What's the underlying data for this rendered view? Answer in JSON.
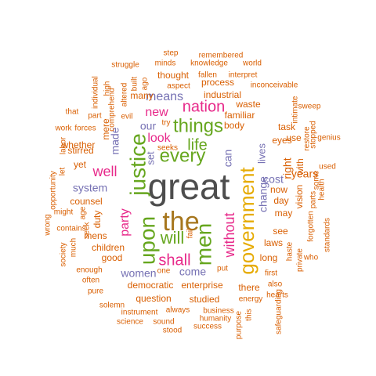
{
  "colors": {
    "dark": "#4D4D4D",
    "green": "#66A61E",
    "brown": "#A6761D",
    "orange": "#E6AB02",
    "magenta": "#E7298A",
    "purple": "#7570B3",
    "rust": "#D95F02"
  },
  "words": [
    {
      "id": "great",
      "text": "great",
      "color": "dark"
    },
    {
      "id": "the",
      "text": "the",
      "color": "brown"
    },
    {
      "id": "government",
      "text": "government",
      "color": "orange"
    },
    {
      "id": "upon",
      "text": "upon",
      "color": "green"
    },
    {
      "id": "justice",
      "text": "justice",
      "color": "green"
    },
    {
      "id": "men",
      "text": "men",
      "color": "green"
    },
    {
      "id": "every",
      "text": "every",
      "color": "green"
    },
    {
      "id": "things",
      "text": "things",
      "color": "green"
    },
    {
      "id": "life",
      "text": "life",
      "color": "green"
    },
    {
      "id": "will",
      "text": "will",
      "color": "green"
    },
    {
      "id": "nation",
      "text": "nation",
      "color": "magenta"
    },
    {
      "id": "shall",
      "text": "shall",
      "color": "magenta"
    },
    {
      "id": "without",
      "text": "without",
      "color": "magenta"
    },
    {
      "id": "party",
      "text": "party",
      "color": "magenta"
    },
    {
      "id": "well",
      "text": "well",
      "color": "magenta"
    },
    {
      "id": "look",
      "text": "look",
      "color": "magenta"
    },
    {
      "id": "new",
      "text": "new",
      "color": "magenta"
    },
    {
      "id": "means",
      "text": "means",
      "color": "purple"
    },
    {
      "id": "our",
      "text": "our",
      "color": "purple"
    },
    {
      "id": "made",
      "text": "made",
      "color": "purple"
    },
    {
      "id": "system",
      "text": "system",
      "color": "purple"
    },
    {
      "id": "set",
      "text": "set",
      "color": "purple"
    },
    {
      "id": "can",
      "text": "can",
      "color": "purple"
    },
    {
      "id": "change",
      "text": "change",
      "color": "purple"
    },
    {
      "id": "lives",
      "text": "lives",
      "color": "purple"
    },
    {
      "id": "cost",
      "text": "cost",
      "color": "purple"
    },
    {
      "id": "come",
      "text": "come",
      "color": "purple"
    },
    {
      "id": "women",
      "text": "women",
      "color": "purple"
    },
    {
      "id": "step",
      "text": "step",
      "color": "rust"
    },
    {
      "id": "remembered",
      "text": "remembered",
      "color": "rust"
    },
    {
      "id": "minds",
      "text": "minds",
      "color": "rust"
    },
    {
      "id": "knowledge",
      "text": "knowledge",
      "color": "rust"
    },
    {
      "id": "world",
      "text": "world",
      "color": "rust"
    },
    {
      "id": "struggle",
      "text": "struggle",
      "color": "rust"
    },
    {
      "id": "built",
      "text": "built",
      "color": "rust"
    },
    {
      "id": "ago",
      "text": "ago",
      "color": "rust"
    },
    {
      "id": "fallen",
      "text": "fallen",
      "color": "rust"
    },
    {
      "id": "interpret",
      "text": "interpret",
      "color": "rust"
    },
    {
      "id": "thought",
      "text": "thought",
      "color": "rust"
    },
    {
      "id": "aspect",
      "text": "aspect",
      "color": "rust"
    },
    {
      "id": "process",
      "text": "process",
      "color": "rust"
    },
    {
      "id": "inconceivable",
      "text": "inconceivable",
      "color": "rust"
    },
    {
      "id": "individual",
      "text": "individual",
      "color": "rust"
    },
    {
      "id": "high",
      "text": "high",
      "color": "rust"
    },
    {
      "id": "altered",
      "text": "altered",
      "color": "rust"
    },
    {
      "id": "many",
      "text": "many",
      "color": "rust"
    },
    {
      "id": "industrial",
      "text": "industrial",
      "color": "rust"
    },
    {
      "id": "part",
      "text": "part",
      "color": "rust"
    },
    {
      "id": "comprehend",
      "text": "comprehend",
      "color": "rust"
    },
    {
      "id": "that",
      "text": "that",
      "color": "rust"
    },
    {
      "id": "waste",
      "text": "waste",
      "color": "rust"
    },
    {
      "id": "intimate",
      "text": "intimate",
      "color": "rust"
    },
    {
      "id": "sweep",
      "text": "sweep",
      "color": "rust"
    },
    {
      "id": "evil",
      "text": "evil",
      "color": "rust"
    },
    {
      "id": "try",
      "text": "try",
      "color": "rust"
    },
    {
      "id": "familiar",
      "text": "familiar",
      "color": "rust"
    },
    {
      "id": "body",
      "text": "body",
      "color": "rust"
    },
    {
      "id": "work",
      "text": "work",
      "color": "rust"
    },
    {
      "id": "forces",
      "text": "forces",
      "color": "rust"
    },
    {
      "id": "mere",
      "text": "mere",
      "color": "rust"
    },
    {
      "id": "task",
      "text": "task",
      "color": "rust"
    },
    {
      "id": "restore",
      "text": "restore",
      "color": "rust"
    },
    {
      "id": "stopped",
      "text": "stopped",
      "color": "rust"
    },
    {
      "id": "genius",
      "text": "genius",
      "color": "rust"
    },
    {
      "id": "labor",
      "text": "labor",
      "color": "rust"
    },
    {
      "id": "stirred",
      "text": "stirred",
      "color": "rust"
    },
    {
      "id": "seeks",
      "text": "seeks",
      "color": "rust"
    },
    {
      "id": "eyes",
      "text": "eyes",
      "color": "rust"
    },
    {
      "id": "use",
      "text": "use",
      "color": "rust"
    },
    {
      "id": "whether",
      "text": "whether",
      "color": "rust"
    },
    {
      "id": "used",
      "text": "used",
      "color": "rust"
    },
    {
      "id": "yet",
      "text": "yet",
      "color": "rust"
    },
    {
      "id": "right",
      "text": "right",
      "color": "rust"
    },
    {
      "id": "years",
      "text": "years",
      "color": "rust"
    },
    {
      "id": "opportunity",
      "text": "opportunity",
      "color": "rust"
    },
    {
      "id": "let",
      "text": "let",
      "color": "rust"
    },
    {
      "id": "now",
      "text": "now",
      "color": "rust"
    },
    {
      "id": "vision",
      "text": "vision",
      "color": "rust"
    },
    {
      "id": "health",
      "text": "health",
      "color": "rust"
    },
    {
      "id": "with",
      "text": "with",
      "color": "rust"
    },
    {
      "id": "day",
      "text": "day",
      "color": "rust"
    },
    {
      "id": "parts",
      "text": "parts",
      "color": "rust"
    },
    {
      "id": "counsel",
      "text": "counsel",
      "color": "rust"
    },
    {
      "id": "might",
      "text": "might",
      "color": "rust"
    },
    {
      "id": "may",
      "text": "may",
      "color": "rust"
    },
    {
      "id": "some",
      "text": "some",
      "color": "rust"
    },
    {
      "id": "duty",
      "text": "duty",
      "color": "rust"
    },
    {
      "id": "forgotten",
      "text": "forgotten",
      "color": "rust"
    },
    {
      "id": "wrong",
      "text": "wrong",
      "color": "rust"
    },
    {
      "id": "age",
      "text": "age",
      "color": "rust"
    },
    {
      "id": "contains",
      "text": "contains",
      "color": "rust"
    },
    {
      "id": "see",
      "text": "see",
      "color": "rust"
    },
    {
      "id": "standards",
      "text": "standards",
      "color": "rust"
    },
    {
      "id": "fail",
      "text": "fail",
      "color": "rust"
    },
    {
      "id": "laws",
      "text": "laws",
      "color": "rust"
    },
    {
      "id": "much",
      "text": "much",
      "color": "rust"
    },
    {
      "id": "mens",
      "text": "mens",
      "color": "rust"
    },
    {
      "id": "children",
      "text": "children",
      "color": "rust"
    },
    {
      "id": "seek",
      "text": "seek",
      "color": "rust"
    },
    {
      "id": "who",
      "text": "who",
      "color": "rust"
    },
    {
      "id": "long",
      "text": "long",
      "color": "rust"
    },
    {
      "id": "society",
      "text": "society",
      "color": "rust"
    },
    {
      "id": "haste",
      "text": "haste",
      "color": "rust"
    },
    {
      "id": "private",
      "text": "private",
      "color": "rust"
    },
    {
      "id": "good",
      "text": "good",
      "color": "rust"
    },
    {
      "id": "enough",
      "text": "enough",
      "color": "rust"
    },
    {
      "id": "put",
      "text": "put",
      "color": "rust"
    },
    {
      "id": "first",
      "text": "first",
      "color": "rust"
    },
    {
      "id": "one",
      "text": "one",
      "color": "rust"
    },
    {
      "id": "also",
      "text": "also",
      "color": "rust"
    },
    {
      "id": "often",
      "text": "often",
      "color": "rust"
    },
    {
      "id": "democratic",
      "text": "democratic",
      "color": "rust"
    },
    {
      "id": "enterprise",
      "text": "enterprise",
      "color": "rust"
    },
    {
      "id": "hearts",
      "text": "hearts",
      "color": "rust"
    },
    {
      "id": "pure",
      "text": "pure",
      "color": "rust"
    },
    {
      "id": "there",
      "text": "there",
      "color": "rust"
    },
    {
      "id": "question",
      "text": "question",
      "color": "rust"
    },
    {
      "id": "solemn",
      "text": "solemn",
      "color": "rust"
    },
    {
      "id": "energy",
      "text": "energy",
      "color": "rust"
    },
    {
      "id": "studied",
      "text": "studied",
      "color": "rust"
    },
    {
      "id": "instrument",
      "text": "instrument",
      "color": "rust"
    },
    {
      "id": "always",
      "text": "always",
      "color": "rust"
    },
    {
      "id": "business",
      "text": "business",
      "color": "rust"
    },
    {
      "id": "safeguarding",
      "text": "safeguarding",
      "color": "rust"
    },
    {
      "id": "humanity",
      "text": "humanity",
      "color": "rust"
    },
    {
      "id": "this",
      "text": "this",
      "color": "rust"
    },
    {
      "id": "science",
      "text": "science",
      "color": "rust"
    },
    {
      "id": "sound",
      "text": "sound",
      "color": "rust"
    },
    {
      "id": "success",
      "text": "success",
      "color": "rust"
    },
    {
      "id": "stood",
      "text": "stood",
      "color": "rust"
    },
    {
      "id": "purpose",
      "text": "purpose",
      "color": "rust"
    }
  ]
}
